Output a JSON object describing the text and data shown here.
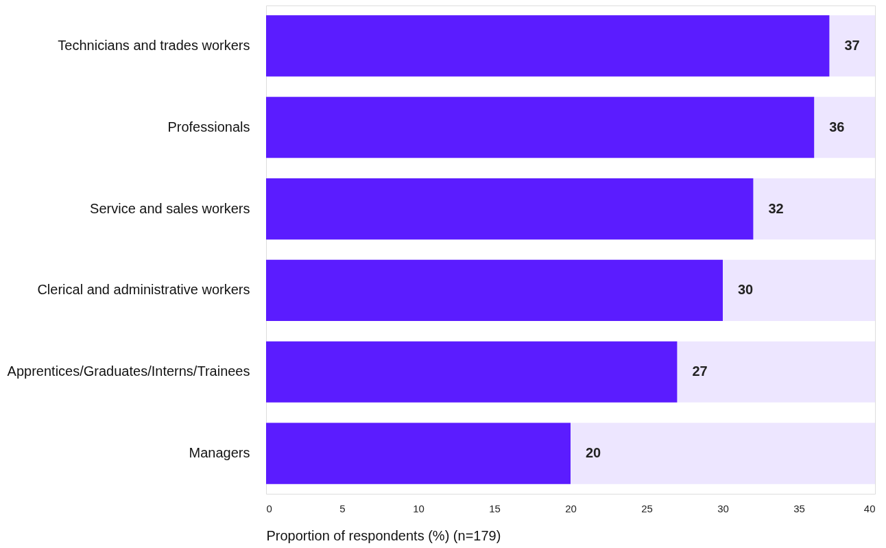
{
  "chart_data": {
    "type": "bar",
    "orientation": "horizontal",
    "xlabel": "Proportion of respondents (%) (n=179)",
    "categories": [
      "Technicians and trades workers",
      "Professionals",
      "Service and sales workers",
      "Clerical and administrative workers",
      "Apprentices/Graduates/Interns/Trainees",
      "Managers"
    ],
    "values": [
      37,
      36,
      32,
      30,
      27,
      20
    ],
    "color": "#5b1cff",
    "data_labels": true,
    "xlim": [
      0,
      40
    ],
    "xticks": [
      0,
      5,
      10,
      15,
      20,
      25,
      30,
      35,
      40
    ],
    "grid": false
  }
}
